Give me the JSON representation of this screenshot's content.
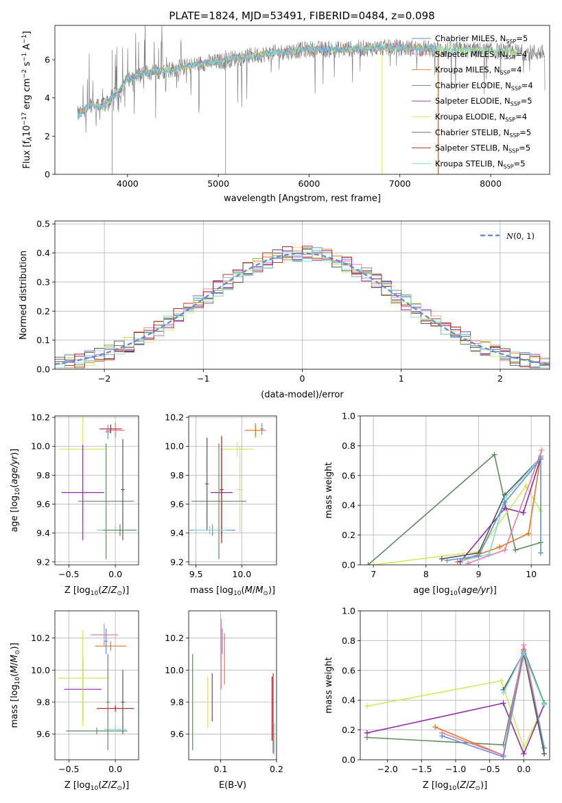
{
  "figure": {
    "title": "PLATE=1824, MJD=53491, FIBERID=0484, z=0.098"
  },
  "colors": {
    "Chabrier MILES": "#5f8fd8",
    "Salpeter MILES": "#e87aa8",
    "Kroupa MILES": "#e8771e",
    "Chabrier ELODIE": "#5e8a5e",
    "Salpeter ELODIE": "#8e2aa8",
    "Kroupa ELODIE": "#cfe85a",
    "Chabrier STELIB": "#555555",
    "Salpeter STELIB": "#b01818",
    "Kroupa STELIB": "#7fd6d6"
  },
  "chart_data": [
    {
      "type": "line",
      "panel": "spectrum",
      "xlabel": "wavelength [Angstrom, rest frame]",
      "ylabel": "Flux [f_λ 10^-17 erg cm^-2 s^-1 A^-1]",
      "xlim": [
        3200,
        8650
      ],
      "ylim": [
        0,
        7.8
      ],
      "xticks": [
        4000,
        5000,
        6000,
        7000,
        8000
      ],
      "yticks": [
        0,
        2,
        4,
        6
      ],
      "legend_position": "right",
      "data_color": "#808080",
      "continuum": {
        "x": [
          3450,
          3600,
          3700,
          3800,
          3900,
          4000,
          4200,
          4500,
          4800,
          5000,
          5200,
          5500,
          5800,
          6000,
          6300,
          6600,
          6900,
          7200,
          7500,
          7800,
          8100,
          8300,
          8650
        ],
        "y": [
          3.1,
          3.7,
          3.5,
          3.9,
          4.3,
          5.0,
          5.3,
          5.5,
          5.8,
          5.9,
          6.1,
          6.3,
          6.45,
          6.55,
          6.55,
          6.6,
          6.65,
          6.6,
          6.55,
          6.5,
          6.45,
          6.4,
          6.35
        ]
      },
      "series": [
        {
          "name": "Chabrier MILES",
          "nssp": "5"
        },
        {
          "name": "Salpeter MILES",
          "nssp": "4"
        },
        {
          "name": "Kroupa MILES",
          "nssp": "4"
        },
        {
          "name": "Chabrier ELODIE",
          "nssp": "4"
        },
        {
          "name": "Salpeter ELODIE",
          "nssp": "5"
        },
        {
          "name": "Kroupa ELODIE",
          "nssp": "4"
        },
        {
          "name": "Chabrier STELIB",
          "nssp": "5"
        },
        {
          "name": "Salpeter STELIB",
          "nssp": "5"
        },
        {
          "name": "Kroupa STELIB",
          "nssp": "5"
        }
      ]
    },
    {
      "type": "line",
      "panel": "residuals",
      "xlabel": "(data-model)/error",
      "ylabel": "Normed distribution",
      "xlim": [
        -2.5,
        2.5
      ],
      "ylim": [
        0,
        0.51
      ],
      "xticks": [
        -2,
        -1,
        0,
        1,
        2
      ],
      "yticks": [
        0.0,
        0.1,
        0.2,
        0.3,
        0.4,
        0.5
      ],
      "bin_width": 0.1,
      "gaussian_label": "N(0,1)",
      "gaussian_color": "#5f8fd8",
      "legend_position": "top-right"
    },
    {
      "type": "scatter",
      "panel": "age_vs_Z",
      "xlabel": "Z [log10(Z/Z⊙)]",
      "ylabel": "age [log10(age/yr)]",
      "xlim": [
        -0.65,
        0.25
      ],
      "ylim": [
        9.18,
        10.21
      ],
      "xticks": [
        -0.5,
        0.0
      ],
      "yticks": [
        9.2,
        9.4,
        9.6,
        9.8,
        10.0,
        10.2
      ],
      "points": [
        {
          "series": "Kroupa MILES",
          "x": 0.0,
          "y": 10.11,
          "xerr": 0.1,
          "yerr": 0.05
        },
        {
          "series": "Salpeter MILES",
          "x": 0.0,
          "y": 10.11,
          "xerr": 0.09,
          "yerr": 0.04
        },
        {
          "series": "Salpeter STELIB",
          "x": -0.05,
          "y": 10.12,
          "xerr": 0.12,
          "yerr": 0.03
        },
        {
          "series": "Chabrier MILES",
          "x": -0.08,
          "y": 10.1,
          "xerr": 0.03,
          "yerr": 0.05
        },
        {
          "series": "Kroupa ELODIE",
          "x": -0.35,
          "y": 9.98,
          "xerr": 0.25,
          "yerr": 0.5
        },
        {
          "series": "Salpeter ELODIE",
          "x": -0.35,
          "y": 9.68,
          "xerr": 0.23,
          "yerr": 0.33
        },
        {
          "series": "Chabrier ELODIE",
          "x": -0.1,
          "y": 9.62,
          "xerr": 0.3,
          "yerr": 0.4
        },
        {
          "series": "Chabrier STELIB",
          "x": 0.08,
          "y": 9.7,
          "xerr": 0.02,
          "yerr": 0.35
        },
        {
          "series": "Kroupa STELIB",
          "x": 0.0,
          "y": 9.42,
          "xerr": 0.2,
          "yerr": 0.03
        },
        {
          "series": "Chabrier ELODIE",
          "x": 0.05,
          "y": 9.42,
          "xerr": 0.18,
          "yerr": 0.04
        }
      ]
    },
    {
      "type": "scatter",
      "panel": "age_vs_mass",
      "xlabel": "mass [log10(M/M⊙)]",
      "ylabel": "",
      "xlim": [
        9.42,
        10.38
      ],
      "ylim": [
        9.18,
        10.21
      ],
      "xticks": [
        9.5,
        10.0
      ],
      "yticks": [
        9.2,
        9.4,
        9.6,
        9.8,
        10.0,
        10.2
      ],
      "points": [
        {
          "series": "Salpeter MILES",
          "x": 10.15,
          "y": 10.11,
          "xerr": 0.12,
          "yerr": 0.05
        },
        {
          "series": "Kroupa MILES",
          "x": 10.15,
          "y": 10.11,
          "xerr": 0.1,
          "yerr": 0.04
        },
        {
          "series": "Chabrier MILES",
          "x": 10.22,
          "y": 10.12,
          "xerr": 0.02,
          "yerr": 0.04
        },
        {
          "series": "Kroupa ELODIE",
          "x": 9.95,
          "y": 9.98,
          "xerr": 0.18,
          "yerr": 0.05
        },
        {
          "series": "Kroupa ELODIE",
          "x": 9.98,
          "y": 9.7,
          "xerr": 0.03,
          "yerr": 0.3
        },
        {
          "series": "Salpeter ELODIE",
          "x": 9.78,
          "y": 9.68,
          "xerr": 0.12,
          "yerr": 0.3
        },
        {
          "series": "Salpeter STELIB",
          "x": 9.78,
          "y": 9.7,
          "xerr": 0.02,
          "yerr": 0.37
        },
        {
          "series": "Chabrier ELODIE",
          "x": 9.75,
          "y": 9.62,
          "xerr": 0.3,
          "yerr": 0.4
        },
        {
          "series": "Chabrier STELIB",
          "x": 9.62,
          "y": 9.74,
          "xerr": 0.02,
          "yerr": 0.32
        },
        {
          "series": "Chabrier MILES",
          "x": 9.68,
          "y": 9.42,
          "xerr": 0.25,
          "yerr": 0.04
        },
        {
          "series": "Kroupa STELIB",
          "x": 9.65,
          "y": 9.42,
          "xerr": 0.18,
          "yerr": 0.03
        }
      ]
    },
    {
      "type": "line",
      "panel": "massweight_vs_age",
      "xlabel": "age [log10(age/yr)]",
      "ylabel": "mass weight",
      "xlim": [
        6.75,
        10.35
      ],
      "ylim": [
        0,
        1.0
      ],
      "xticks": [
        7,
        8,
        9,
        10
      ],
      "yticks": [
        0.0,
        0.2,
        0.4,
        0.6,
        0.8,
        1.0
      ],
      "series": [
        {
          "name": "Chabrier ELODIE",
          "x": [
            6.9,
            9.3,
            9.7,
            10.18
          ],
          "y": [
            0.0,
            0.74,
            0.1,
            0.15
          ]
        },
        {
          "name": "Kroupa ELODIE",
          "x": [
            7.0,
            9.0,
            9.9,
            10.18
          ],
          "y": [
            0.0,
            0.09,
            0.53,
            0.36
          ]
        },
        {
          "name": "Kroupa MILES",
          "x": [
            8.6,
            9.4,
            9.95,
            10.18
          ],
          "y": [
            0.02,
            0.12,
            0.21,
            0.73
          ]
        },
        {
          "name": "Salpeter ELODIE",
          "x": [
            8.65,
            9.5,
            9.85,
            10.18
          ],
          "y": [
            0.02,
            0.38,
            0.35,
            0.72
          ]
        },
        {
          "name": "Chabrier STELIB",
          "x": [
            8.3,
            9.0,
            9.5,
            10.18
          ],
          "y": [
            0.04,
            0.08,
            0.47,
            0.72
          ]
        },
        {
          "name": "Kroupa STELIB",
          "x": [
            8.7,
            9.2,
            9.5,
            10.18
          ],
          "y": [
            0.03,
            0.07,
            0.45,
            0.72
          ]
        },
        {
          "name": "Salpeter MILES",
          "x": [
            8.8,
            9.5,
            10.2
          ],
          "y": [
            0.01,
            0.1,
            0.77
          ]
        },
        {
          "name": "Chabrier MILES",
          "x": [
            8.4,
            9.0,
            9.5,
            10.18,
            10.18
          ],
          "y": [
            0.03,
            0.06,
            0.42,
            0.71,
            0.08
          ]
        }
      ]
    },
    {
      "type": "scatter",
      "panel": "mass_vs_Z",
      "xlabel": "Z [log10(Z/Z⊙)]",
      "ylabel": "mass [log10(M/M⊙)]",
      "xlim": [
        -0.65,
        0.25
      ],
      "ylim": [
        9.44,
        10.37
      ],
      "xticks": [
        -0.5,
        0.0
      ],
      "yticks": [
        9.6,
        9.8,
        10.0,
        10.2
      ],
      "points": [
        {
          "series": "Salpeter MILES",
          "x": -0.12,
          "y": 10.22,
          "xerr": 0.15,
          "yerr": 0.07
        },
        {
          "series": "Kroupa MILES",
          "x": -0.05,
          "y": 10.15,
          "xerr": 0.17,
          "yerr": 0.03
        },
        {
          "series": "Chabrier MILES",
          "x": -0.1,
          "y": 10.18,
          "xerr": 0.02,
          "yerr": 0.08
        },
        {
          "series": "Salpeter ELODIE",
          "x": -0.35,
          "y": 9.88,
          "xerr": 0.2,
          "yerr": 0.2
        },
        {
          "series": "Kroupa ELODIE",
          "x": -0.35,
          "y": 9.95,
          "xerr": 0.27,
          "yerr": 0.3
        },
        {
          "series": "Salpeter STELIB",
          "x": 0.0,
          "y": 9.76,
          "xerr": 0.2,
          "yerr": 0.02
        },
        {
          "series": "Chabrier STELIB",
          "x": 0.08,
          "y": 9.8,
          "xerr": 0.02,
          "yerr": 0.2
        },
        {
          "series": "Chabrier ELODIE",
          "x": -0.2,
          "y": 9.62,
          "xerr": 0.33,
          "yerr": 0.02
        },
        {
          "series": "Kroupa STELIB",
          "x": 0.0,
          "y": 9.63,
          "xerr": 0.12,
          "yerr": 0.02
        },
        {
          "series": "Chabrier ELODIE",
          "x": -0.08,
          "y": 9.8,
          "xerr": 0.02,
          "yerr": 0.3
        }
      ]
    },
    {
      "type": "scatter",
      "panel": "mass_vs_EBV",
      "xlabel": "E(B-V)",
      "ylabel": "",
      "xlim": [
        0.043,
        0.2
      ],
      "ylim": [
        9.44,
        10.37
      ],
      "xticks": [
        0.1,
        0.2
      ],
      "yticks": [
        9.6,
        9.8,
        10.0,
        10.2
      ],
      "points": [
        {
          "series": "Chabrier ELODIE",
          "x": 0.05,
          "y": 9.8,
          "xerr": 0,
          "yerr": 0.3
        },
        {
          "series": "Kroupa ELODIE",
          "x": 0.077,
          "y": 9.8,
          "xerr": 0,
          "yerr": 0.16
        },
        {
          "series": "Salpeter ELODIE",
          "x": 0.085,
          "y": 9.83,
          "xerr": 0,
          "yerr": 0.15
        },
        {
          "series": "Salpeter MILES",
          "x": 0.101,
          "y": 10.1,
          "xerr": 0,
          "yerr": 0.22
        },
        {
          "series": "Chabrier MILES",
          "x": 0.103,
          "y": 10.18,
          "xerr": 0,
          "yerr": 0.08
        },
        {
          "series": "Kroupa MILES",
          "x": 0.107,
          "y": 10.07,
          "xerr": 0,
          "yerr": 0.16
        },
        {
          "series": "Salpeter STELIB",
          "x": 0.192,
          "y": 9.76,
          "xerr": 0,
          "yerr": 0.2
        },
        {
          "series": "Chabrier STELIB",
          "x": 0.194,
          "y": 9.73,
          "xerr": 0,
          "yerr": 0.25
        },
        {
          "series": "Kroupa STELIB",
          "x": 0.196,
          "y": 9.57,
          "xerr": 0,
          "yerr": 0.1
        }
      ]
    },
    {
      "type": "line",
      "panel": "massweight_vs_Z",
      "xlabel": "Z [log10(Z/Z⊙)]",
      "ylabel": "mass weight",
      "xlim": [
        -2.4,
        0.38
      ],
      "ylim": [
        0,
        1.0
      ],
      "xticks": [
        -2.0,
        -1.5,
        -1.0,
        -0.5,
        0.0
      ],
      "yticks": [
        0.0,
        0.2,
        0.4,
        0.6,
        0.8,
        1.0
      ],
      "series": [
        {
          "name": "Kroupa ELODIE",
          "x": [
            -2.3,
            -0.33,
            0.0,
            0.3
          ],
          "y": [
            0.36,
            0.53,
            0.08,
            0.37
          ]
        },
        {
          "name": "Salpeter ELODIE",
          "x": [
            -2.3,
            -0.3,
            0.0,
            0.3
          ],
          "y": [
            0.18,
            0.38,
            0.04,
            0.37
          ]
        },
        {
          "name": "Chabrier ELODIE",
          "x": [
            -2.3,
            -0.3,
            0.0,
            0.3
          ],
          "y": [
            0.15,
            0.1,
            0.74,
            0.38
          ]
        },
        {
          "name": "Kroupa MILES",
          "x": [
            -1.3,
            -0.3,
            0.0
          ],
          "y": [
            0.22,
            0.03,
            0.73
          ]
        },
        {
          "name": "Salpeter MILES",
          "x": [
            -1.2,
            -0.3,
            0.0,
            0.3
          ],
          "y": [
            0.18,
            0.03,
            0.77,
            0.08
          ]
        },
        {
          "name": "Chabrier MILES",
          "x": [
            -1.2,
            -0.3,
            0.0,
            0.3
          ],
          "y": [
            0.16,
            0.02,
            0.71,
            0.08
          ]
        },
        {
          "name": "Chabrier STELIB",
          "x": [
            -0.3,
            0.0,
            0.3
          ],
          "y": [
            0.47,
            0.72,
            0.04
          ]
        },
        {
          "name": "Kroupa STELIB",
          "x": [
            -0.3,
            0.0,
            0.3
          ],
          "y": [
            0.45,
            0.72,
            0.37
          ]
        }
      ]
    }
  ]
}
